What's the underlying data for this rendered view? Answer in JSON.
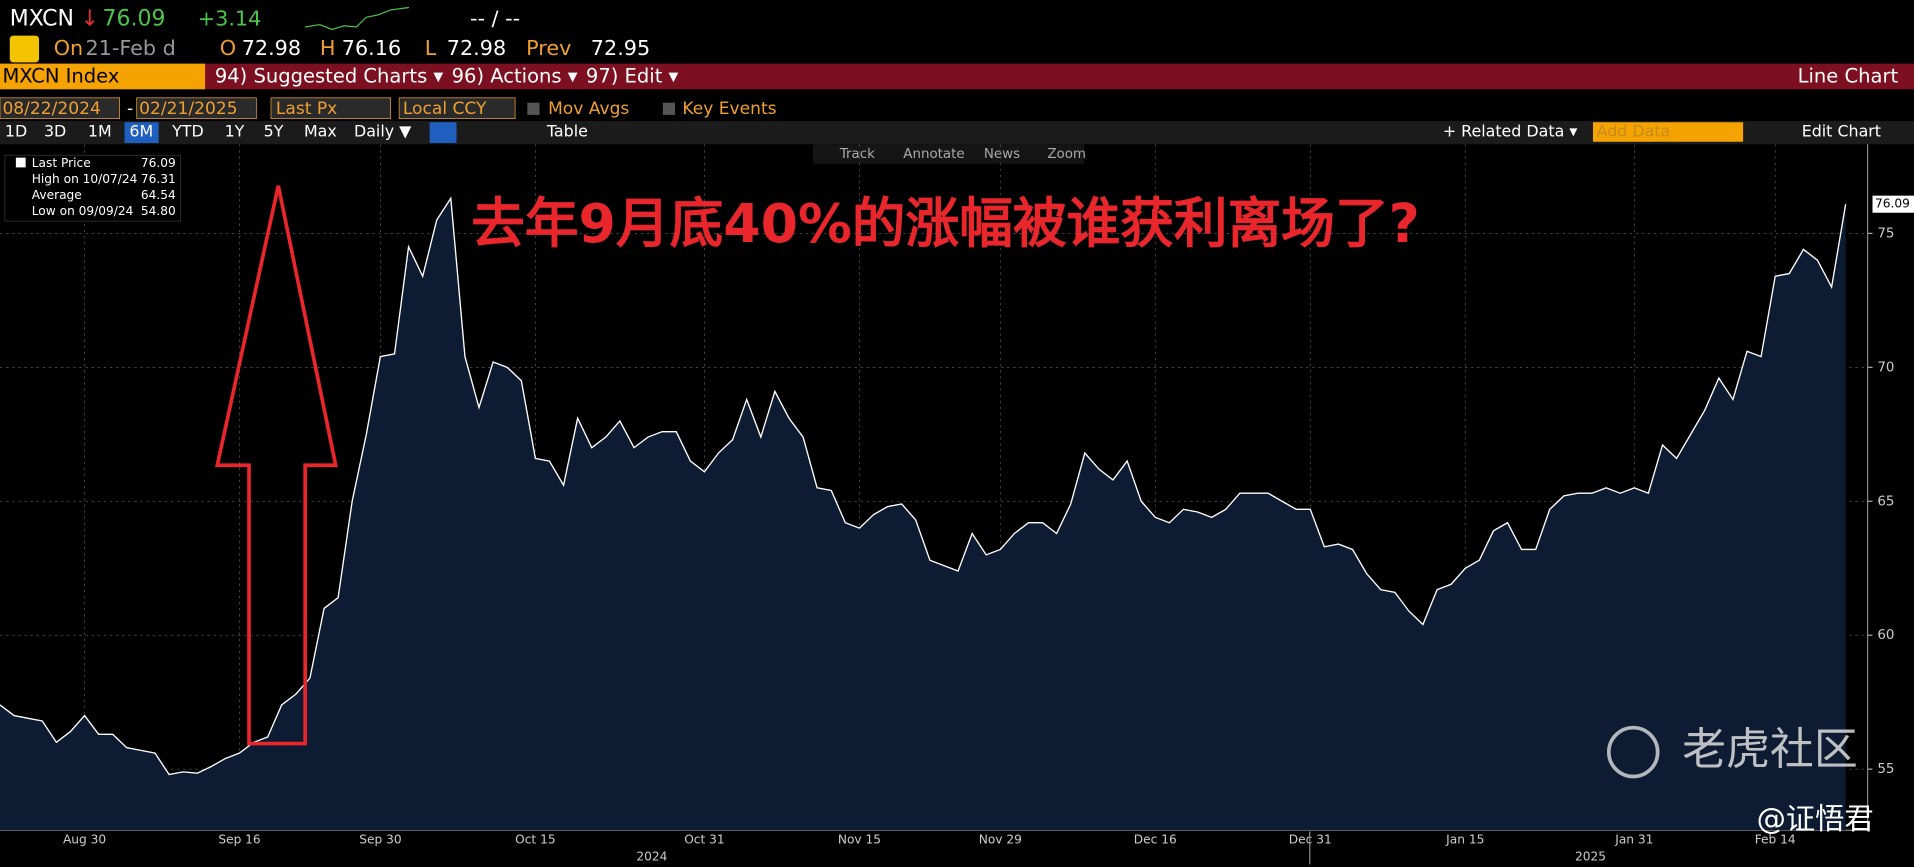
{
  "header": {
    "ticker": "MXCN",
    "arrow": "↓",
    "price": "76.09",
    "change": "+3.14",
    "bid_ask": "-- / --",
    "on": "On",
    "date": "21-Feb d",
    "open_label": "O",
    "open": "72.98",
    "high_label": "H",
    "high": "76.16",
    "low_label": "L",
    "low": "72.98",
    "prev_label": "Prev",
    "prev": "72.95"
  },
  "menu": {
    "security": "MXCN Index",
    "items": [
      "94) Suggested Charts ▾",
      "96) Actions ▾",
      "97) Edit ▾"
    ],
    "chart_type": "Line Chart"
  },
  "controls": {
    "start": "08/22/2024",
    "sep": "-",
    "end": "02/21/2025",
    "field": "Last Px",
    "currency": "Local CCY",
    "options": [
      "Mov Avgs",
      "Key Events"
    ]
  },
  "toolbar": {
    "periods": [
      "1D",
      "3D",
      "1M",
      "6M",
      "YTD",
      "1Y",
      "5Y",
      "Max"
    ],
    "active_period": 3,
    "frequency": "Daily ▼",
    "table": "Table",
    "related": "+ Related Data ▾",
    "add_data": "Add Data",
    "edit_chart": "Edit Chart"
  },
  "chart_tools": [
    "Track",
    "Annotate",
    "News",
    "Zoom"
  ],
  "chart_data": {
    "type": "line",
    "title": "去年9月底40%的涨幅被谁获利离场了?",
    "categories": [
      null,
      null,
      null,
      null,
      null,
      null,
      "Aug 30",
      null,
      null,
      null,
      null,
      null,
      null,
      null,
      null,
      null,
      null,
      "Sep 16",
      null,
      null,
      null,
      null,
      null,
      null,
      null,
      null,
      null,
      "Sep 30",
      null,
      null,
      null,
      null,
      null,
      null,
      null,
      null,
      null,
      null,
      "Oct 15",
      null,
      null,
      null,
      null,
      null,
      null,
      null,
      null,
      null,
      null,
      null,
      "Oct 31",
      null,
      null,
      null,
      null,
      null,
      null,
      null,
      null,
      null,
      null,
      "Nov 15",
      null,
      null,
      null,
      null,
      null,
      null,
      null,
      null,
      null,
      "Nov 29",
      null,
      null,
      null,
      null,
      null,
      null,
      null,
      null,
      null,
      null,
      "Dec 16",
      null,
      null,
      null,
      null,
      null,
      null,
      null,
      null,
      null,
      null,
      "Dec 31",
      null,
      null,
      null,
      null,
      null,
      null,
      null,
      null,
      null,
      null,
      "Jan 15",
      null,
      null,
      null,
      null,
      null,
      null,
      null,
      null,
      null,
      null,
      null,
      "Jan 31",
      null,
      null,
      null,
      null,
      null,
      null,
      null,
      null,
      null,
      "Feb 14",
      null,
      null,
      null,
      null,
      null
    ],
    "year_labels": [
      "2024",
      "2025"
    ],
    "series": [
      {
        "name": "Last Price",
        "color": "#ffffff",
        "fill": "#0e1c33",
        "values": [
          57.4,
          57.0,
          56.9,
          56.8,
          56.0,
          56.4,
          57.0,
          56.3,
          56.3,
          55.8,
          55.7,
          55.6,
          54.8,
          54.9,
          54.85,
          55.1,
          55.4,
          55.6,
          56.0,
          56.2,
          57.4,
          57.8,
          58.4,
          61.0,
          61.4,
          65.0,
          67.5,
          70.4,
          70.5,
          74.5,
          73.4,
          75.5,
          76.31,
          70.4,
          68.5,
          70.2,
          70.0,
          69.5,
          66.6,
          66.5,
          65.6,
          68.1,
          67.0,
          67.4,
          68.0,
          67.0,
          67.4,
          67.6,
          67.6,
          66.5,
          66.1,
          66.8,
          67.3,
          68.8,
          67.4,
          69.1,
          68.1,
          67.4,
          65.5,
          65.4,
          64.2,
          64.0,
          64.5,
          64.8,
          64.9,
          64.3,
          62.8,
          62.6,
          62.4,
          63.8,
          63.0,
          63.2,
          63.8,
          64.2,
          64.2,
          63.8,
          64.9,
          66.8,
          66.2,
          65.8,
          66.5,
          65.0,
          64.4,
          64.2,
          64.7,
          64.6,
          64.4,
          64.7,
          65.3,
          65.3,
          65.3,
          65.0,
          64.7,
          64.7,
          63.3,
          63.4,
          63.2,
          62.3,
          61.7,
          61.6,
          60.9,
          60.4,
          61.7,
          61.9,
          62.5,
          62.8,
          63.9,
          64.2,
          63.2,
          63.2,
          64.7,
          65.2,
          65.3,
          65.3,
          65.5,
          65.3,
          65.5,
          65.3,
          67.1,
          66.6,
          67.5,
          68.4,
          69.6,
          68.8,
          70.6,
          70.4,
          73.4,
          73.5,
          74.4,
          74.0,
          73.0,
          76.09
        ]
      }
    ],
    "legend_stats": [
      {
        "label": "High on 10/07/24",
        "value": "76.31"
      },
      {
        "label": "Average",
        "value": "64.54"
      },
      {
        "label": "Low on 09/09/24",
        "value": "54.80"
      }
    ],
    "ylim": [
      52.72,
      78.33
    ],
    "yticks": [
      55,
      60,
      65,
      70,
      75
    ],
    "grid": true
  },
  "watermark": {
    "brand": "老虎社区",
    "author": "@证悟君"
  }
}
